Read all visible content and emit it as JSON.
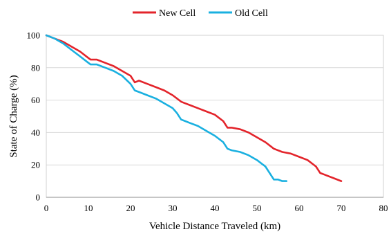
{
  "chart_data": {
    "type": "line",
    "title": "",
    "xlabel": "Vehicle Distance Traveled (km)",
    "ylabel": "State of Charge (%)",
    "xlim": [
      0,
      80
    ],
    "ylim": [
      0,
      100
    ],
    "xticks": [
      "0",
      "10",
      "20",
      "30",
      "40",
      "50",
      "60",
      "70",
      "80"
    ],
    "yticks": [
      "0",
      "20",
      "40",
      "60",
      "80",
      "100"
    ],
    "grid": "horizontal",
    "legend_position": "top-center",
    "series": [
      {
        "name": "New Cell",
        "color": "#e3242b",
        "x": [
          0,
          2,
          4,
          6,
          8,
          10,
          10.5,
          12,
          14,
          16,
          18,
          20,
          21,
          22,
          24,
          26,
          28,
          30,
          32,
          33,
          34,
          36,
          38,
          40,
          42,
          43,
          44,
          46,
          48,
          50,
          52,
          54,
          56,
          58,
          60,
          62,
          64,
          65,
          66,
          68,
          70
        ],
        "y": [
          100,
          98,
          96,
          93,
          90,
          86,
          85,
          85,
          83,
          81,
          78,
          75,
          71,
          72,
          70,
          68,
          66,
          63,
          59,
          58,
          57,
          55,
          53,
          51,
          47,
          43,
          43,
          42,
          40,
          37,
          34,
          30,
          28,
          27,
          25,
          23,
          19,
          15,
          14,
          12,
          10
        ]
      },
      {
        "name": "Old Cell",
        "color": "#1ab0e0",
        "x": [
          0,
          2,
          4,
          6,
          8,
          10,
          10.5,
          12,
          14,
          16,
          18,
          20,
          21,
          22,
          24,
          26,
          28,
          30,
          31,
          32,
          33,
          34,
          36,
          38,
          40,
          42,
          43,
          44,
          46,
          48,
          50,
          52,
          54,
          55,
          56,
          57
        ],
        "y": [
          100,
          98,
          95,
          91,
          87,
          83,
          82,
          82,
          80,
          78,
          75,
          70,
          66,
          65,
          63,
          61,
          58,
          55,
          52,
          48,
          47,
          46,
          44,
          41,
          38,
          34,
          30,
          29,
          28,
          26,
          23,
          19,
          11,
          11,
          10,
          10
        ]
      }
    ]
  }
}
